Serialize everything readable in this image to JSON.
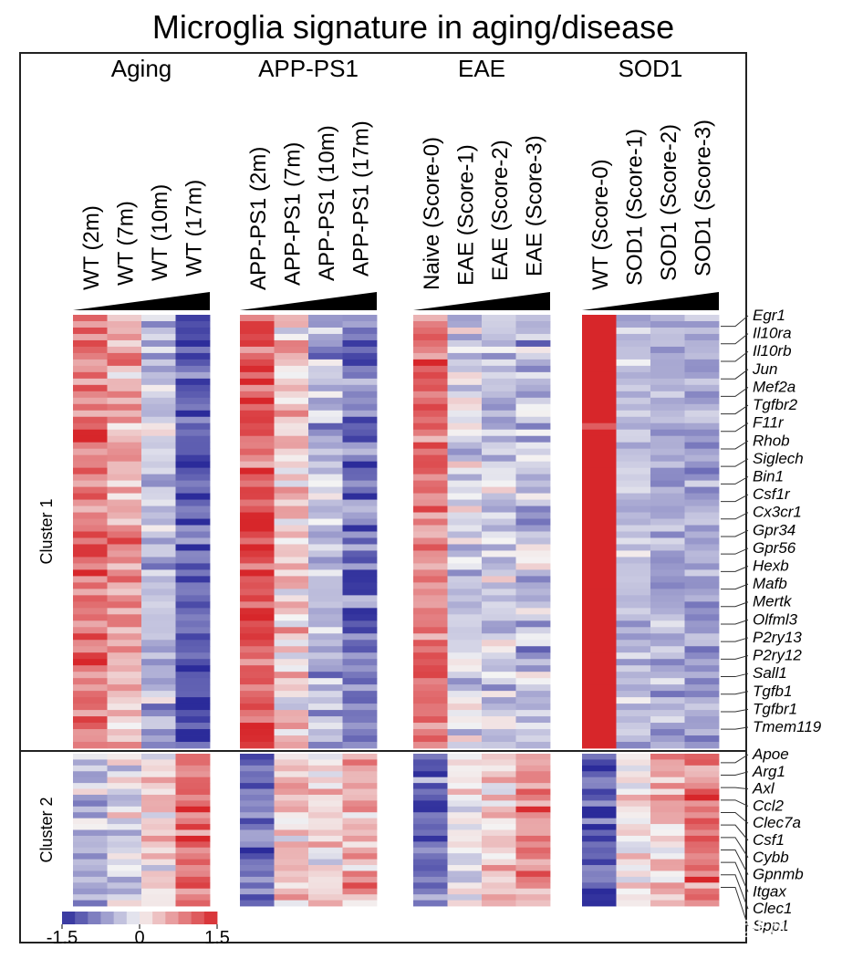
{
  "chart_data": {
    "type": "heatmap",
    "title": "Microglia signature in aging/disease",
    "groups": [
      {
        "name": "Aging",
        "columns": [
          "WT (2m)",
          "WT (7m)",
          "WT (10m)",
          "WT (17m)"
        ]
      },
      {
        "name": "APP-PS1",
        "columns": [
          "APP-PS1 (2m)",
          "APP-PS1 (7m)",
          "APP-PS1 (10m)",
          "APP-PS1 (17m)"
        ]
      },
      {
        "name": "EAE",
        "columns": [
          "Naive (Score-0)",
          "EAE (Score-1)",
          "EAE (Score-2)",
          "EAE (Score-3)"
        ]
      },
      {
        "name": "SOD1",
        "columns": [
          "WT (Score-0)",
          "SOD1 (Score-1)",
          "SOD1 (Score-2)",
          "SOD1 (Score-3)"
        ]
      }
    ],
    "clusters": [
      {
        "name": "Cluster 1",
        "rows": 68,
        "genes": [
          "Egr1",
          "Il10ra",
          "Il10rb",
          "Jun",
          "Mef2a",
          "Tgfbr2",
          "F11r",
          "Rhob",
          "Siglech",
          "Bin1",
          "Csf1r",
          "Cx3cr1",
          "Gpr34",
          "Gpr56",
          "Hexb",
          "Mafb",
          "Mertk",
          "Olfml3",
          "P2ry13",
          "P2ry12",
          "Sall1",
          "Tgfb1",
          "Tgfbr1",
          "Tmem119"
        ],
        "trend": [
          [
            0.9,
            0.6,
            -0.4,
            -1.2
          ],
          [
            1.2,
            0.3,
            -0.5,
            -0.9
          ],
          [
            0.9,
            -0.2,
            -0.3,
            -0.4
          ],
          [
            1.5,
            -0.4,
            -0.5,
            -0.6
          ]
        ]
      },
      {
        "name": "Cluster 2",
        "rows": 26,
        "genes": [
          "Apoe",
          "Arg1",
          "Axl",
          "Ccl2",
          "Clec7a",
          "Csf1",
          "Cybb",
          "Gpnmb",
          "Itgax",
          "Clec1",
          "Spp1"
        ],
        "trend": [
          [
            -0.5,
            -0.1,
            0.3,
            1.0
          ],
          [
            -1.0,
            0.3,
            0.2,
            0.5
          ],
          [
            -1.0,
            -0.1,
            0.3,
            0.8
          ],
          [
            -1.2,
            0.1,
            0.4,
            0.9
          ]
        ]
      }
    ],
    "colorbar": {
      "min": -1.5,
      "max": 1.5,
      "ticks": [
        "-1.5",
        "0",
        "1.5"
      ],
      "colors": [
        "#2b2b9a",
        "#f4f4f4",
        "#d7262a"
      ]
    }
  },
  "watermark": "知乎 @Eolsa"
}
